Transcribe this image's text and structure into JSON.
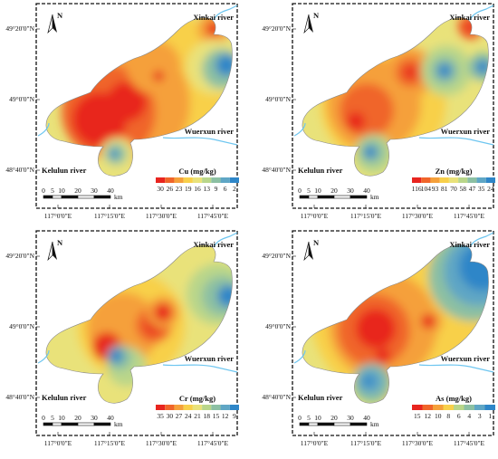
{
  "figure": {
    "panels": [
      {
        "id": "cu",
        "legend_title": "Cu (mg/kg)",
        "legend_values": [
          "30",
          "26",
          "23",
          "19",
          "16",
          "13",
          "9",
          "6",
          "2"
        ],
        "y_ticks": [
          "49°20'0\"N",
          "49°0'0\"N",
          "48°40'0\"N"
        ],
        "x_ticks": [
          "117°0'0\"E",
          "117°15'0\"E",
          "117°30'0\"E",
          "117°45'0\"E"
        ],
        "labels": {
          "river_ne": "Xinkai river",
          "river_se": "Wuerxun river",
          "river_sw": "Kelulun river"
        },
        "scale": {
          "ticks": [
            "0",
            "5",
            "10",
            "20",
            "30",
            "40"
          ],
          "unit": "km"
        },
        "north": "N",
        "hotspots": [
          "west",
          "center-west"
        ],
        "lowspots": [
          "east",
          "south-lobe"
        ]
      },
      {
        "id": "zn",
        "legend_title": "Zn (mg/kg)",
        "legend_values": [
          "116",
          "104",
          "93",
          "81",
          "70",
          "58",
          "47",
          "35",
          "24"
        ],
        "y_ticks": [
          "49°20'0\"N",
          "49°0'0\"N",
          "48°40'0\"N"
        ],
        "x_ticks": [
          "117°0'0\"E",
          "117°15'0\"E",
          "117°30'0\"E",
          "117°45'0\"E"
        ],
        "labels": {
          "river_ne": "Xinkai river",
          "river_se": "Wuerxun river",
          "river_sw": "Kelulun river"
        },
        "scale": {
          "ticks": [
            "0",
            "5",
            "10",
            "20",
            "30",
            "40"
          ],
          "unit": "km"
        },
        "north": "N"
      },
      {
        "id": "cr",
        "legend_title": "Cr (mg/kg)",
        "legend_values": [
          "35",
          "30",
          "27",
          "24",
          "21",
          "18",
          "15",
          "12",
          "9"
        ],
        "y_ticks": [
          "49°20'0\"N",
          "49°0'0\"N",
          "48°40'0\"N"
        ],
        "x_ticks": [
          "117°0'0\"E",
          "117°15'0\"E",
          "117°30'0\"E",
          "117°45'0\"E"
        ],
        "labels": {
          "river_ne": "Xinkai river",
          "river_se": "Wuerxun river",
          "river_sw": "Kelulun river"
        },
        "scale": {
          "ticks": [
            "0",
            "5",
            "10",
            "20",
            "30",
            "40"
          ],
          "unit": "km"
        },
        "north": "N"
      },
      {
        "id": "as",
        "legend_title": "As (mg/kg)",
        "legend_values": [
          "15",
          "12",
          "10",
          "8",
          "6",
          "4",
          "3",
          "1"
        ],
        "y_ticks": [
          "49°20'0\"N",
          "49°0'0\"N",
          "48°40'0\"N"
        ],
        "x_ticks": [
          "117°0'0\"E",
          "117°15'0\"E",
          "117°30'0\"E",
          "117°45'0\"E"
        ],
        "labels": {
          "river_ne": "Xinkai river",
          "river_se": "Wuerxun river",
          "river_sw": "Kelulun river"
        },
        "scale": {
          "ticks": [
            "0",
            "5",
            "10",
            "20",
            "30",
            "40"
          ],
          "unit": "km"
        },
        "north": "N"
      }
    ],
    "colors": {
      "ramp": [
        "#e8251f",
        "#f0652a",
        "#f5a03a",
        "#f8d04a",
        "#e9e27a",
        "#b9d68a",
        "#8cc0a3",
        "#5fa6c5",
        "#2e86c8"
      ],
      "river": "#6ec6f0",
      "frame": "#111111"
    }
  }
}
